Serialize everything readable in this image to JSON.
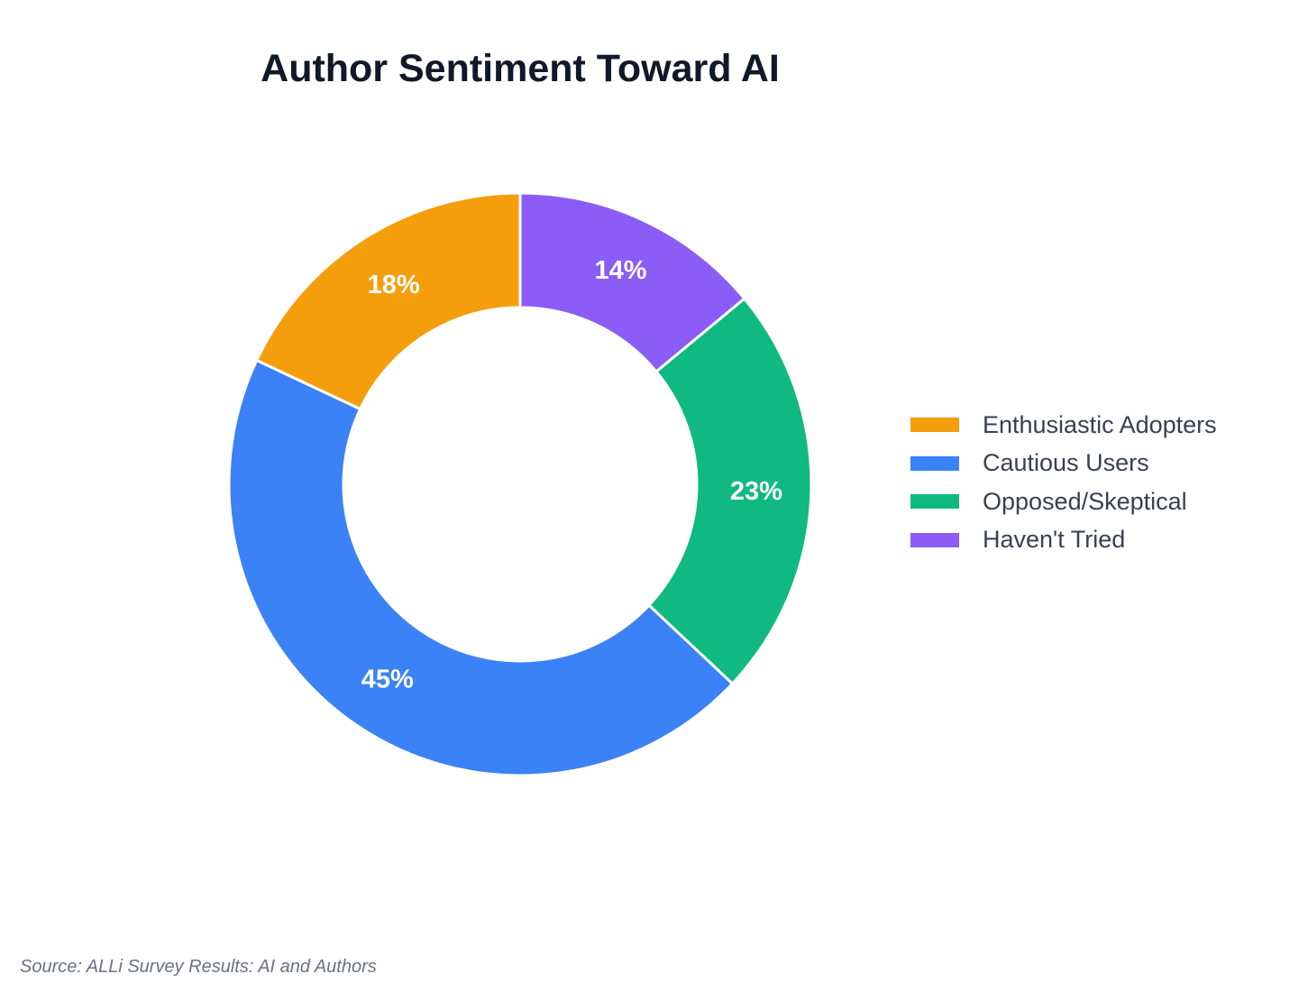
{
  "chart_data": {
    "type": "pie",
    "variant": "donut",
    "title": "Author Sentiment Toward AI",
    "categories": [
      "Enthusiastic Adopters",
      "Cautious Users",
      "Opposed/Skeptical",
      "Haven't Tried"
    ],
    "values": [
      18,
      45,
      23,
      14
    ],
    "value_labels": [
      "18%",
      "45%",
      "23%",
      "14%"
    ],
    "colors": [
      "#f59e0b",
      "#3b82f6",
      "#10b981",
      "#8b5cf6"
    ],
    "legend_position": "right",
    "legend_order": [
      0,
      1,
      2,
      3
    ],
    "draw_order": [
      3,
      2,
      1,
      0
    ],
    "source": "Source: ALLi Survey Results: AI and Authors"
  }
}
